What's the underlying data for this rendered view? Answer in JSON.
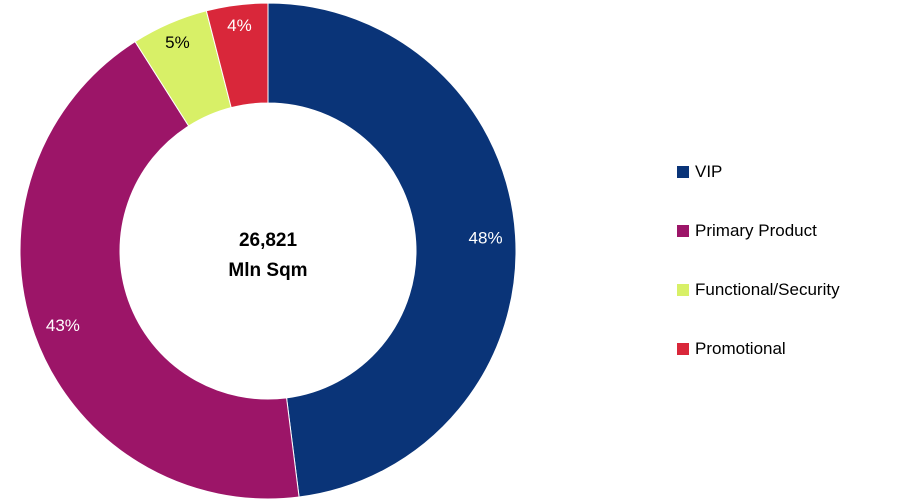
{
  "chart_data": {
    "type": "pie",
    "style": "donut",
    "center_text": [
      "26,821",
      "Mln Sqm"
    ],
    "slices": [
      {
        "name": "VIP",
        "value": 48,
        "label": "48%",
        "color": "#0a3478",
        "label_color": "#ffffff"
      },
      {
        "name": "Primary Product",
        "value": 43,
        "label": "43%",
        "color": "#9c1568",
        "label_color": "#ffffff"
      },
      {
        "name": "Functional/Security",
        "value": 5,
        "label": "5%",
        "color": "#d8f067",
        "label_color": "#000000"
      },
      {
        "name": "Promotional",
        "value": 4,
        "label": "4%",
        "color": "#d9273a",
        "label_color": "#ffffff"
      }
    ],
    "legend_position": "right"
  }
}
